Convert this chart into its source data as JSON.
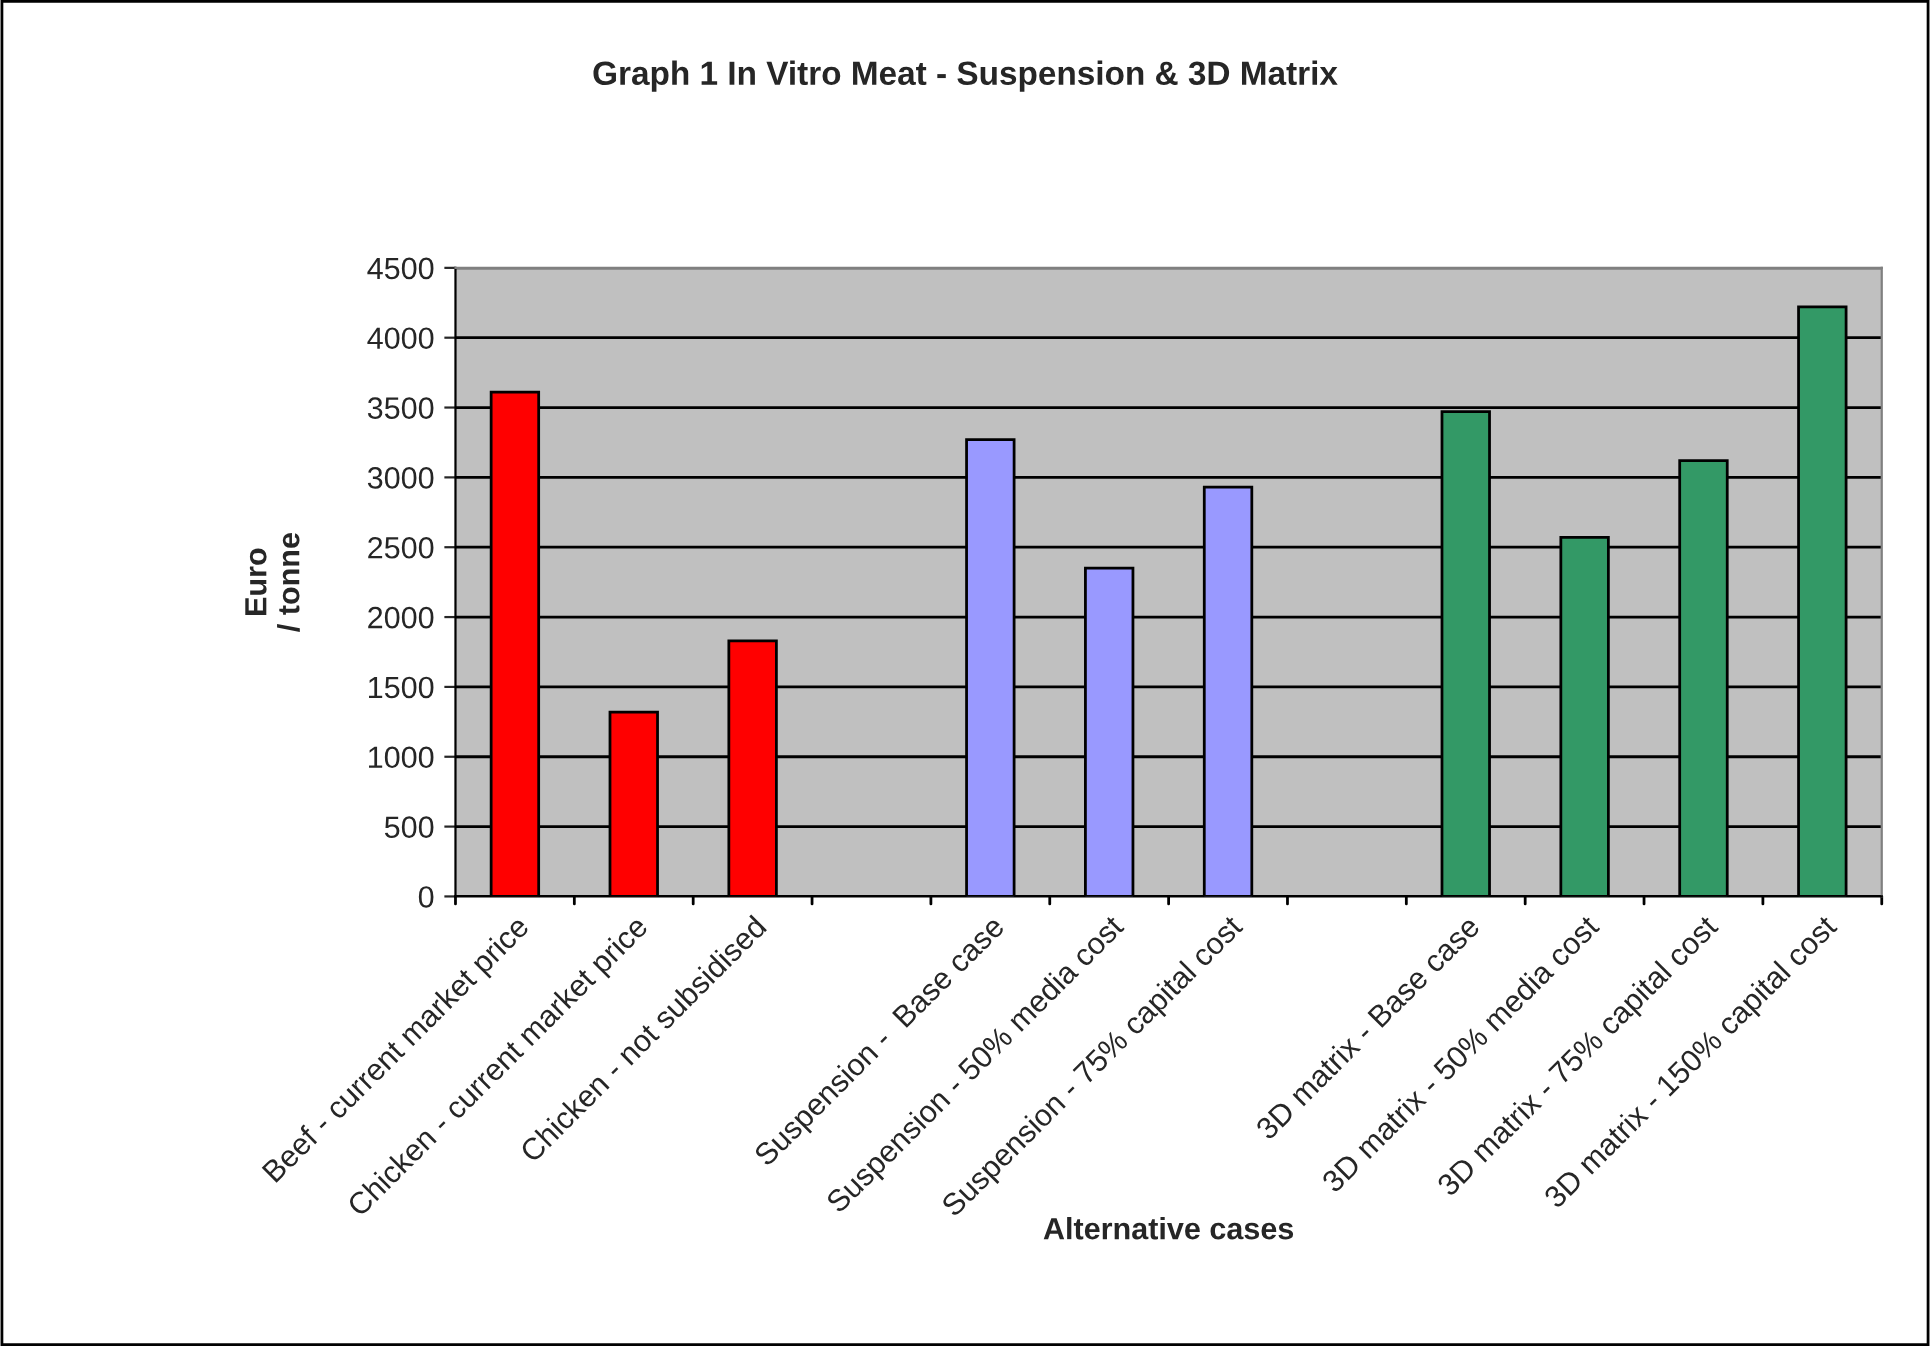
{
  "chart_data": {
    "type": "bar",
    "title": "Graph 1 In Vitro Meat - Suspension & 3D Matrix",
    "xlabel": "Alternative cases",
    "ylabel": "Euro\n/ tonne",
    "categories": [
      "Beef - current market price",
      "Chicken - current market price",
      "Chicken - not subsidised",
      null,
      "Suspension -  Base case",
      "Suspension - 50% media cost",
      "Suspension - 75% capital cost",
      null,
      "3D matrix - Base case",
      "3D matrix - 50% media cost",
      "3D matrix - 75% capital cost",
      "3D matrix - 150% capital cost"
    ],
    "values": [
      3610,
      1320,
      1830,
      null,
      3270,
      2350,
      2930,
      null,
      3470,
      2570,
      3120,
      4220
    ],
    "colors": [
      "#ff0000",
      "#ff0000",
      "#ff0000",
      null,
      "#9999ff",
      "#9999ff",
      "#9999ff",
      null,
      "#339966",
      "#339966",
      "#339966",
      "#339966"
    ],
    "ylim": [
      0,
      4500
    ],
    "yticks": [
      0,
      500,
      1000,
      1500,
      2000,
      2500,
      3000,
      3500,
      4000,
      4500
    ],
    "grid": "y",
    "legend": false
  }
}
